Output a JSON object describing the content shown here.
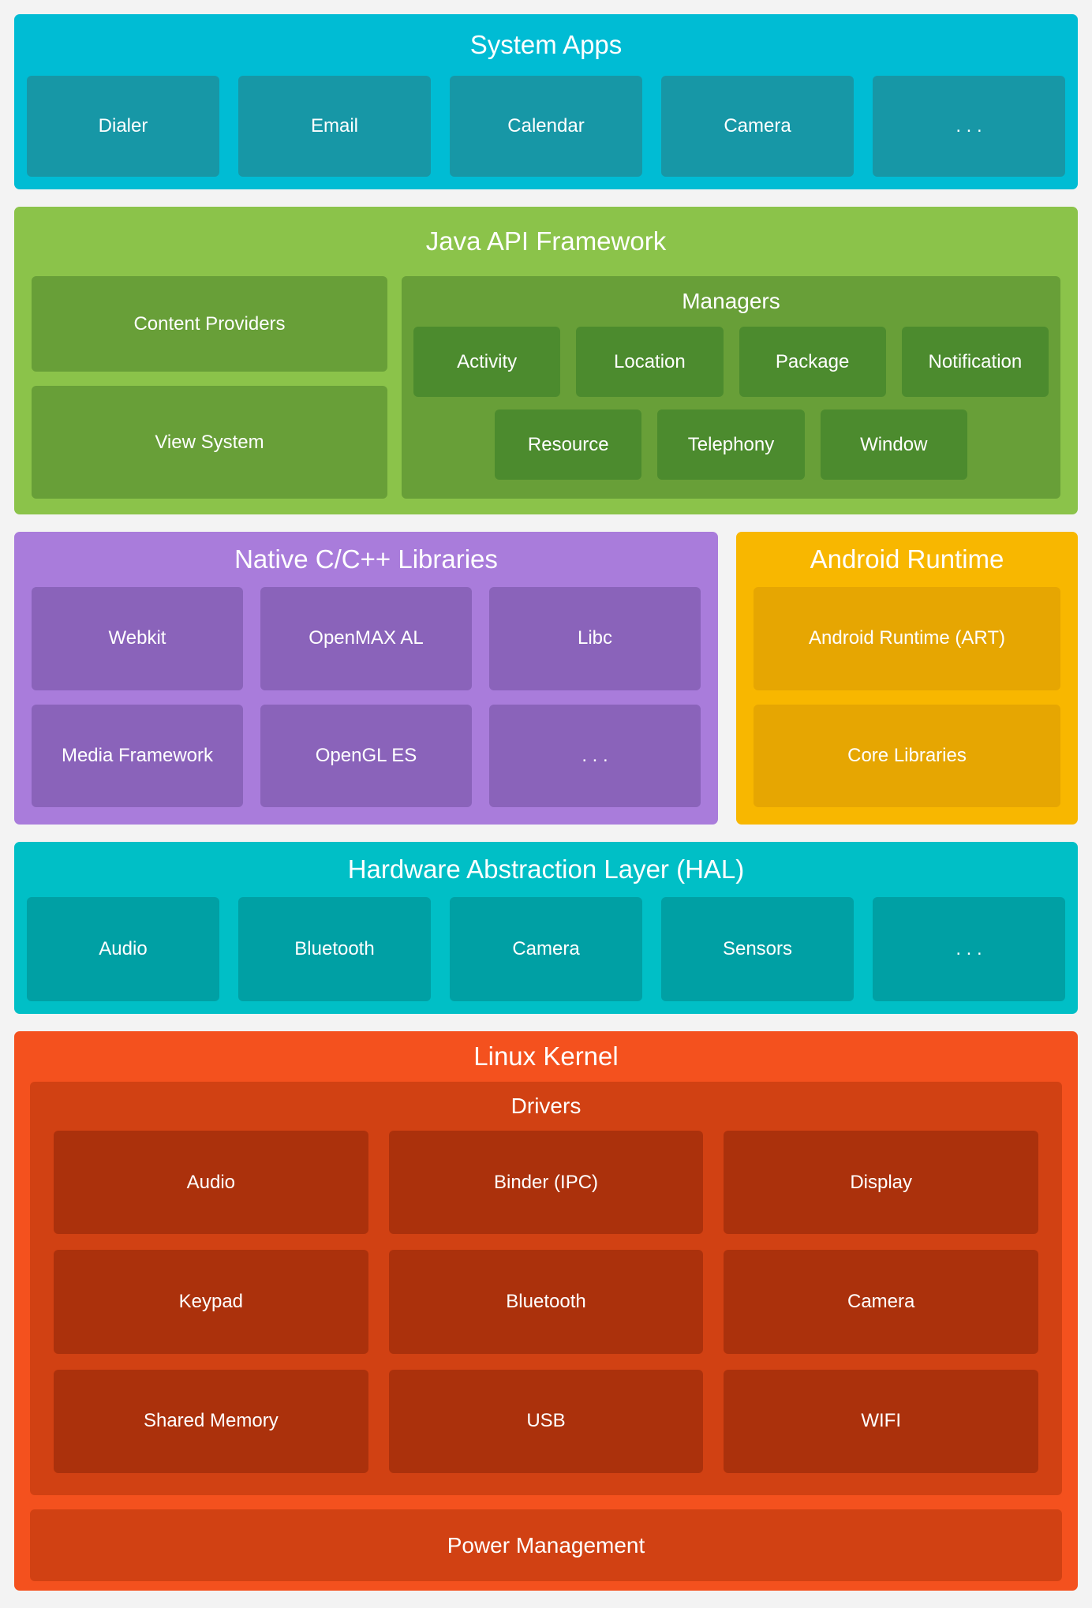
{
  "page": {
    "background": "#F3F3F3",
    "text_color": "#FFFFFF"
  },
  "sections": {
    "system_apps": {
      "title": "System Apps",
      "bg": "#00BCD4",
      "box_bg": "#1797A6",
      "boxes": [
        "Dialer",
        "Email",
        "Calendar",
        "Camera",
        ". . ."
      ]
    },
    "java_api": {
      "title": "Java API Framework",
      "bg": "#8BC34A",
      "box_bg": "#689F38",
      "left_boxes": {
        "content_providers": "Content Providers",
        "view_system": "View System"
      },
      "managers": {
        "title": "Managers",
        "box_bg": "#4C8B2E",
        "row1": [
          "Activity",
          "Location",
          "Package",
          "Notification"
        ],
        "row2": [
          "Resource",
          "Telephony",
          "Window"
        ]
      }
    },
    "native_libs": {
      "title": "Native C/C++ Libraries",
      "bg": "#A97CDB",
      "box_bg": "#8A63BA",
      "row1": [
        "Webkit",
        "OpenMAX AL",
        "Libc"
      ],
      "row2": [
        "Media Framework",
        "OpenGL ES",
        ". . ."
      ]
    },
    "android_runtime": {
      "title": "Android Runtime",
      "bg": "#F8B700",
      "box_bg": "#E6A602",
      "boxes": [
        "Android Runtime (ART)",
        "Core Libraries"
      ]
    },
    "hal": {
      "title": "Hardware Abstraction Layer (HAL)",
      "bg": "#00BFC6",
      "box_bg": "#00A0A4",
      "boxes": [
        "Audio",
        "Bluetooth",
        "Camera",
        "Sensors",
        ". . ."
      ]
    },
    "linux_kernel": {
      "title": "Linux Kernel",
      "bg": "#F4511E",
      "drivers": {
        "title": "Drivers",
        "bg": "#D14113",
        "box_bg": "#AB310C",
        "rows": [
          [
            "Audio",
            "Binder (IPC)",
            "Display"
          ],
          [
            "Keypad",
            "Bluetooth",
            "Camera"
          ],
          [
            "Shared Memory",
            "USB",
            "WIFI"
          ]
        ]
      },
      "power_management": "Power Management"
    }
  }
}
